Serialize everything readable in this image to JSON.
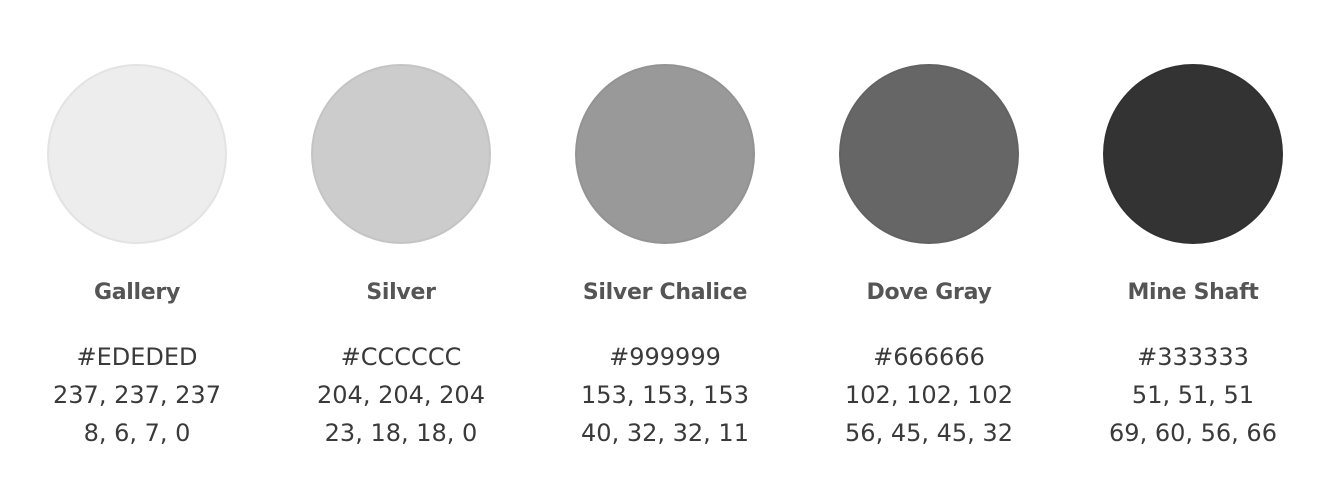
{
  "swatches": [
    {
      "name": "Gallery",
      "hex": "#EDEDED",
      "rgb": "237, 237, 237",
      "cmyk": "8, 6, 7, 0",
      "color": "#EDEDED"
    },
    {
      "name": "Silver",
      "hex": "#CCCCCC",
      "rgb": "204, 204, 204",
      "cmyk": "23, 18, 18, 0",
      "color": "#CCCCCC"
    },
    {
      "name": "Silver Chalice",
      "hex": "#999999",
      "rgb": "153, 153, 153",
      "cmyk": "40, 32, 32, 11",
      "color": "#999999"
    },
    {
      "name": "Dove Gray",
      "hex": "#666666",
      "rgb": "102, 102, 102",
      "cmyk": "56, 45, 45, 32",
      "color": "#666666"
    },
    {
      "name": "Mine Shaft",
      "hex": "#333333",
      "rgb": "51, 51, 51",
      "cmyk": "69, 60, 56, 66",
      "color": "#333333"
    }
  ]
}
